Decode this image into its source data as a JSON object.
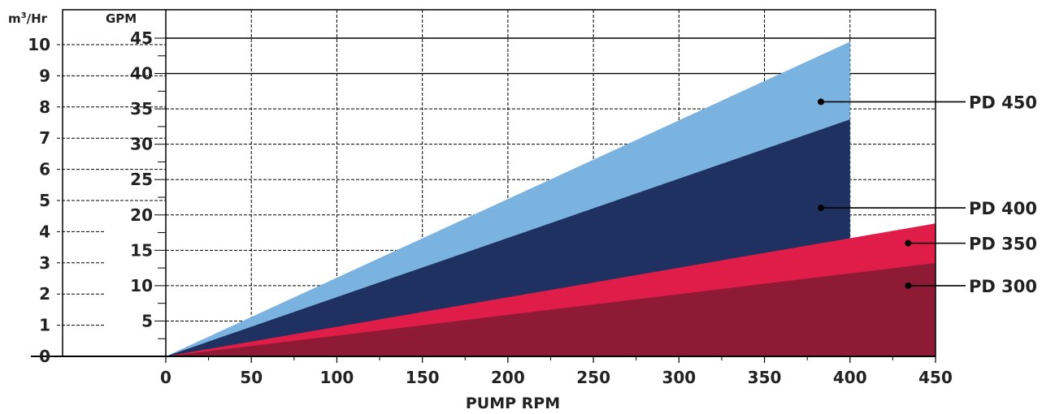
{
  "chart_data": {
    "type": "area",
    "xlabel": "PUMP RPM",
    "y_left_label_prefix": "m",
    "y_left_label_sup": "3",
    "y_left_label_suffix": "/Hr",
    "y_right_label": "GPM",
    "x_ticks": [
      "0",
      "50",
      "100",
      "150",
      "200",
      "250",
      "300",
      "350",
      "400",
      "450"
    ],
    "gpm_ticks": [
      "5",
      "10",
      "15",
      "20",
      "25",
      "30",
      "35",
      "40",
      "45"
    ],
    "m3_ticks": [
      "0",
      "1",
      "2",
      "3",
      "4",
      "5",
      "6",
      "7",
      "8",
      "9",
      "10"
    ],
    "xlim": [
      0,
      450
    ],
    "ylim_gpm": [
      0,
      45
    ],
    "grid": true,
    "series": [
      {
        "name": "PD 450",
        "x": [
          0,
          400
        ],
        "y_gpm": [
          0,
          44.5
        ],
        "color": "#7ab3e0",
        "marker_x": 383,
        "marker_y_gpm": 36
      },
      {
        "name": "PD 400",
        "x": [
          0,
          400
        ],
        "y_gpm": [
          0,
          33.5
        ],
        "color": "#1f3160",
        "marker_x": 383,
        "marker_y_gpm": 21
      },
      {
        "name": "PD 350",
        "x": [
          0,
          450
        ],
        "y_gpm": [
          0,
          18.8
        ],
        "color": "#e01d48",
        "marker_x": 434,
        "marker_y_gpm": 16
      },
      {
        "name": "PD 300",
        "x": [
          0,
          450
        ],
        "y_gpm": [
          0,
          13.2
        ],
        "color": "#8e1a36",
        "marker_x": 434,
        "marker_y_gpm": 10
      }
    ]
  }
}
